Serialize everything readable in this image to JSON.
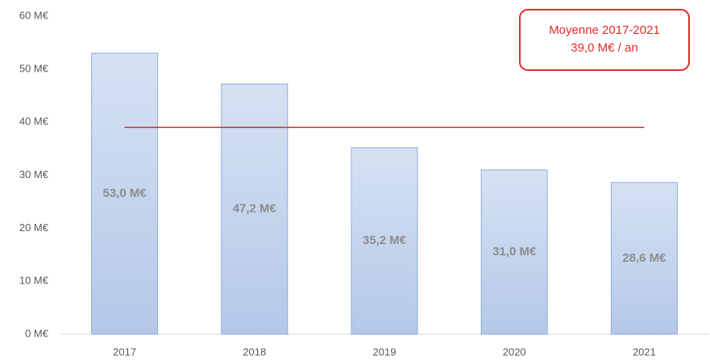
{
  "chart_data": {
    "type": "bar",
    "categories": [
      "2017",
      "2018",
      "2019",
      "2020",
      "2021"
    ],
    "values": [
      53.0,
      47.2,
      35.2,
      31.0,
      28.6
    ],
    "value_labels": [
      "53,0 M€",
      "47,2 M€",
      "35,2 M€",
      "31,0 M€",
      "28,6 M€"
    ],
    "color": "#c5d5ec",
    "ylim": [
      0,
      60
    ],
    "yticks": [
      {
        "value": 0,
        "label": "0 M€"
      },
      {
        "value": 10,
        "label": "10 M€"
      },
      {
        "value": 20,
        "label": "20 M€"
      },
      {
        "value": 30,
        "label": "30 M€"
      },
      {
        "value": 40,
        "label": "40 M€"
      },
      {
        "value": 50,
        "label": "50 M€"
      },
      {
        "value": 60,
        "label": "60 M€"
      }
    ],
    "grid": false,
    "average": {
      "value": 39.0,
      "color": "#e02b2b",
      "annotation": [
        "Moyenne 2017-2021",
        "39,0 M€ / an"
      ]
    }
  }
}
